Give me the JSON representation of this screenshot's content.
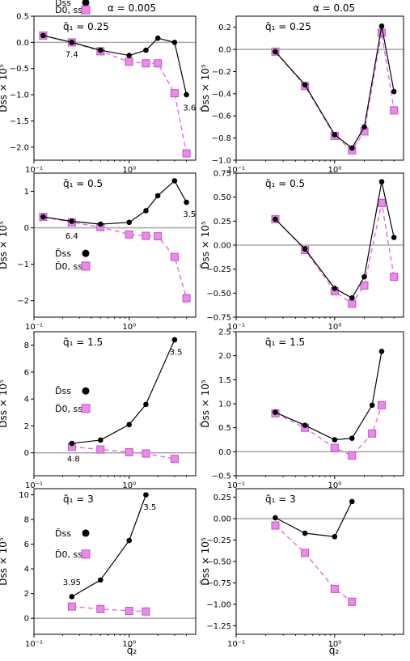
{
  "column_titles": [
    "α = 0.005",
    "α = 0.05"
  ],
  "x_axis_label": "q̃₂",
  "y_axis_label": "D̃ss × 10⁵",
  "legend": {
    "filled": "D̃ss",
    "square": "D̃0, ss"
  },
  "colors": {
    "filled": "#000000",
    "square_face": "#ee88ee",
    "square_edge": "#bb55bb",
    "square_line": "#e070e0",
    "zero_line": "#aaaaaa"
  },
  "chart_data": [
    {
      "type": "line",
      "panel": "row1-left",
      "q1_label": "q̃₁ = 0.25",
      "x_scale": "log",
      "xlim": [
        0.1,
        5
      ],
      "x_ticks": [
        0.1,
        1
      ],
      "x_tick_labels": [
        "10⁻¹",
        "10⁰"
      ],
      "ylim": [
        -2.25,
        0.5
      ],
      "y_ticks": [
        0.5,
        0,
        -0.5,
        -1,
        -1.5,
        -2
      ],
      "y_tick_labels": [
        "0.5",
        "0.0",
        "−0.5",
        "−1.0",
        "−1.5",
        "−2.0"
      ],
      "series": [
        {
          "role": "filled",
          "x": [
            0.125,
            0.25,
            0.5,
            1,
            1.5,
            2,
            3,
            4
          ],
          "y": [
            0.13,
            0.0,
            -0.15,
            -0.25,
            -0.15,
            0.08,
            0.0,
            -1.0
          ]
        },
        {
          "role": "square",
          "x": [
            0.125,
            0.25,
            0.5,
            1,
            1.5,
            2,
            3,
            4
          ],
          "y": [
            0.13,
            0.0,
            -0.17,
            -0.37,
            -0.4,
            -0.4,
            -0.97,
            -2.12
          ]
        }
      ],
      "annotations": [
        {
          "text": "7.4",
          "x": 0.25,
          "y": -0.28
        },
        {
          "text": "3.6",
          "x": 4.3,
          "y": -1.3
        }
      ],
      "legend_visible": true,
      "legend_top": 0.76,
      "legend_bottom": 0.62
    },
    {
      "type": "line",
      "panel": "row1-right",
      "q1_label": "q̃₁ = 0.25",
      "x_scale": "log",
      "xlim": [
        0.1,
        5
      ],
      "x_ticks": [
        0.1,
        1
      ],
      "x_tick_labels": [
        "10⁻¹",
        "10⁰"
      ],
      "ylim": [
        -1.0,
        0.3
      ],
      "y_ticks": [
        0.2,
        0,
        -0.2,
        -0.4,
        -0.6,
        -0.8,
        -1.0
      ],
      "y_tick_labels": [
        "0.2",
        "0.0",
        "−0.2",
        "−0.4",
        "−0.6",
        "−0.8",
        "−1.0"
      ],
      "series": [
        {
          "role": "filled",
          "x": [
            0.25,
            0.5,
            1,
            1.5,
            2,
            3,
            4
          ],
          "y": [
            -0.02,
            -0.32,
            -0.77,
            -0.89,
            -0.7,
            0.21,
            -0.38
          ]
        },
        {
          "role": "square",
          "x": [
            0.25,
            0.5,
            1,
            1.5,
            2,
            3,
            4
          ],
          "y": [
            -0.02,
            -0.33,
            -0.78,
            -0.91,
            -0.74,
            0.15,
            -0.55
          ]
        }
      ],
      "annotations": [],
      "legend_visible": false
    },
    {
      "type": "line",
      "panel": "row2-left",
      "q1_label": "q̃₁ = 0.5",
      "x_scale": "log",
      "xlim": [
        0.1,
        5
      ],
      "x_ticks": [
        0.1,
        1
      ],
      "x_tick_labels": [
        "10⁻¹",
        "10⁰"
      ],
      "ylim": [
        -2.45,
        1.5
      ],
      "y_ticks": [
        1,
        0,
        -1,
        -2
      ],
      "y_tick_labels": [
        "1",
        "0",
        "−1",
        "−2"
      ],
      "series": [
        {
          "role": "filled",
          "x": [
            0.125,
            0.25,
            0.5,
            1,
            1.5,
            2,
            3,
            4
          ],
          "y": [
            0.3,
            0.18,
            0.1,
            0.15,
            0.47,
            0.88,
            1.29,
            0.7
          ]
        },
        {
          "role": "square",
          "x": [
            0.125,
            0.25,
            0.5,
            1,
            1.5,
            2,
            3,
            4
          ],
          "y": [
            0.3,
            0.15,
            0.02,
            -0.18,
            -0.22,
            -0.23,
            -0.8,
            -1.93
          ]
        }
      ],
      "annotations": [
        {
          "text": "6.4",
          "x": 0.25,
          "y": -0.3
        },
        {
          "text": "3.5",
          "x": 4.3,
          "y": 0.3
        }
      ],
      "legend_visible": true,
      "legend_top": -0.7,
      "legend_bottom": -1.05
    },
    {
      "type": "line",
      "panel": "row2-right",
      "q1_label": "q̃₁ = 0.5",
      "x_scale": "log",
      "xlim": [
        0.1,
        5
      ],
      "x_ticks": [
        0.1,
        1
      ],
      "x_tick_labels": [
        "10⁻¹",
        "10⁰"
      ],
      "ylim": [
        -0.75,
        0.75
      ],
      "y_ticks": [
        0.75,
        0.5,
        0.25,
        0,
        -0.25,
        -0.5,
        -0.75
      ],
      "y_tick_labels": [
        "0.75",
        "0.50",
        "0.25",
        "0.00",
        "−0.25",
        "−0.50",
        "−0.75"
      ],
      "series": [
        {
          "role": "filled",
          "x": [
            0.25,
            0.5,
            1,
            1.5,
            2,
            3,
            4
          ],
          "y": [
            0.27,
            -0.04,
            -0.45,
            -0.55,
            -0.33,
            0.66,
            0.08
          ]
        },
        {
          "role": "square",
          "x": [
            0.25,
            0.5,
            1,
            1.5,
            2,
            3,
            4
          ],
          "y": [
            0.27,
            -0.05,
            -0.48,
            -0.61,
            -0.42,
            0.44,
            -0.33
          ]
        }
      ],
      "annotations": [],
      "legend_visible": false
    },
    {
      "type": "line",
      "panel": "row3-left",
      "q1_label": "q̃₁ = 1.5",
      "x_scale": "log",
      "xlim": [
        0.1,
        5
      ],
      "x_ticks": [
        0.1,
        1
      ],
      "x_tick_labels": [
        "10⁻¹",
        "10⁰"
      ],
      "ylim": [
        -1.7,
        9
      ],
      "y_ticks": [
        8,
        6,
        4,
        2,
        0
      ],
      "y_tick_labels": [
        "8",
        "6",
        "4",
        "2",
        "0"
      ],
      "series": [
        {
          "role": "filled",
          "x": [
            0.25,
            0.5,
            1,
            1.5,
            3
          ],
          "y": [
            0.7,
            0.95,
            2.1,
            3.6,
            8.4
          ]
        },
        {
          "role": "square",
          "x": [
            0.25,
            0.5,
            1,
            1.5,
            3
          ],
          "y": [
            0.45,
            0.25,
            0.05,
            -0.05,
            -0.45
          ]
        }
      ],
      "annotations": [
        {
          "text": "4.8",
          "x": 0.26,
          "y": -0.65
        },
        {
          "text": "3.5",
          "x": 3.1,
          "y": 7.3
        }
      ],
      "legend_visible": true,
      "legend_top": 4.6,
      "legend_bottom": 3.3
    },
    {
      "type": "line",
      "panel": "row3-right",
      "q1_label": "q̃₁ = 1.5",
      "x_scale": "log",
      "xlim": [
        0.1,
        5
      ],
      "x_ticks": [
        0.1,
        1
      ],
      "x_tick_labels": [
        "10⁻¹",
        "10⁰"
      ],
      "ylim": [
        -0.5,
        2.5
      ],
      "y_ticks": [
        2.5,
        2,
        1.5,
        1,
        0.5,
        0,
        -0.5
      ],
      "y_tick_labels": [
        "2.5",
        "2.0",
        "1.5",
        "1.0",
        "0.5",
        "0.0",
        "−0.5"
      ],
      "series": [
        {
          "role": "filled",
          "x": [
            0.25,
            0.5,
            1,
            1.5,
            2.4,
            3
          ],
          "y": [
            0.82,
            0.55,
            0.25,
            0.28,
            0.97,
            2.09
          ]
        },
        {
          "role": "square",
          "x": [
            0.25,
            0.5,
            1,
            1.5,
            2.4,
            3
          ],
          "y": [
            0.8,
            0.5,
            0.08,
            -0.08,
            0.38,
            0.97
          ]
        }
      ],
      "annotations": [],
      "legend_visible": false
    },
    {
      "type": "line",
      "panel": "row4-left",
      "q1_label": "q̃₁ = 3",
      "x_scale": "log",
      "xlim": [
        0.1,
        5
      ],
      "x_ticks": [
        0.1,
        1
      ],
      "x_tick_labels": [
        "10⁻¹",
        "10⁰"
      ],
      "ylim": [
        -1.3,
        10.5
      ],
      "y_ticks": [
        10,
        8,
        6,
        4,
        2,
        0
      ],
      "y_tick_labels": [
        "10",
        "8",
        "6",
        "4",
        "2",
        "0"
      ],
      "series": [
        {
          "role": "filled",
          "x": [
            0.25,
            0.5,
            1,
            1.5
          ],
          "y": [
            1.75,
            3.1,
            6.3,
            10.0
          ]
        },
        {
          "role": "square",
          "x": [
            0.25,
            0.5,
            1,
            1.5
          ],
          "y": [
            0.95,
            0.75,
            0.6,
            0.55
          ]
        }
      ],
      "annotations": [
        {
          "text": "3.95",
          "x": 0.25,
          "y": 2.7
        },
        {
          "text": "3.5",
          "x": 1.65,
          "y": 8.8
        }
      ],
      "legend_visible": true,
      "legend_top": 6.9,
      "legend_bottom": 5.2
    },
    {
      "type": "line",
      "panel": "row4-right",
      "q1_label": "q̃₁ = 3",
      "x_scale": "log",
      "xlim": [
        0.1,
        5
      ],
      "x_ticks": [
        0.1,
        1
      ],
      "x_tick_labels": [
        "10⁻¹",
        "10⁰"
      ],
      "ylim": [
        -1.35,
        0.35
      ],
      "y_ticks": [
        0.25,
        0,
        -0.25,
        -0.5,
        -0.75,
        -1,
        -1.25
      ],
      "y_tick_labels": [
        "0.25",
        "0.00",
        "−0.25",
        "−0.50",
        "−0.75",
        "−1.00",
        "−1.25"
      ],
      "series": [
        {
          "role": "filled",
          "x": [
            0.25,
            0.5,
            1,
            1.5
          ],
          "y": [
            0.01,
            -0.17,
            -0.21,
            0.2
          ]
        },
        {
          "role": "square",
          "x": [
            0.25,
            0.5,
            1,
            1.5
          ],
          "y": [
            -0.08,
            -0.4,
            -0.82,
            -0.97
          ]
        }
      ],
      "annotations": [],
      "legend_visible": false
    }
  ]
}
